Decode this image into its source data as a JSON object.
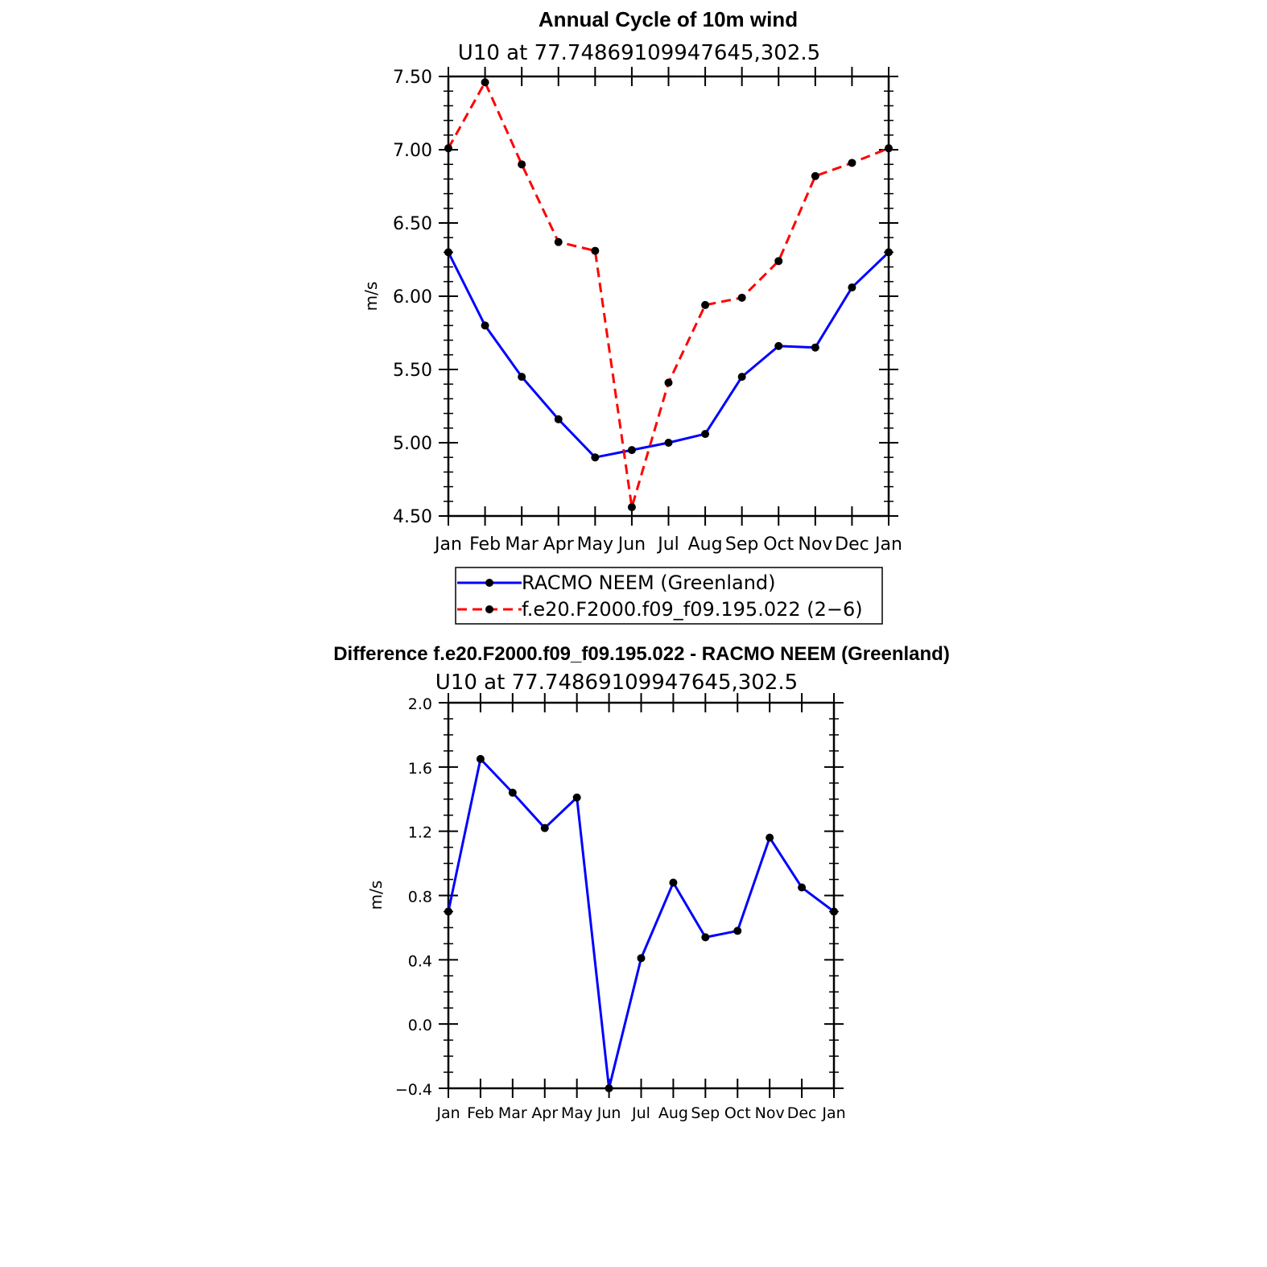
{
  "chart_data": [
    {
      "type": "line",
      "title": "Annual Cycle of 10m wind",
      "subtitle": "U10  at  77.74869109947645,302.5",
      "ylabel": "m/s",
      "xlabel": "",
      "categories": [
        "Jan",
        "Feb",
        "Mar",
        "Apr",
        "May",
        "Jun",
        "Jul",
        "Aug",
        "Sep",
        "Oct",
        "Nov",
        "Dec",
        "Jan"
      ],
      "ylim": [
        4.5,
        7.5
      ],
      "yticks": [
        "4.50",
        "5.00",
        "5.50",
        "6.00",
        "6.50",
        "7.00",
        "7.50"
      ],
      "series": [
        {
          "name": "RACMO NEEM (Greenland)",
          "color": "#0000ff",
          "style": "solid",
          "values": [
            6.3,
            5.8,
            5.45,
            5.16,
            4.9,
            4.95,
            5.0,
            5.06,
            5.45,
            5.66,
            5.65,
            6.06,
            6.3
          ]
        },
        {
          "name": "f.e20.F2000.f09_f09.195.022 (2−6)",
          "color": "#ff0000",
          "style": "dashed",
          "values": [
            7.01,
            7.46,
            6.9,
            6.37,
            6.31,
            4.56,
            5.41,
            5.94,
            5.99,
            6.24,
            6.82,
            6.91,
            7.01
          ]
        }
      ],
      "legend_position": "bottom"
    },
    {
      "type": "line",
      "title": "Difference f.e20.F2000.f09_f09.195.022 - RACMO NEEM (Greenland)",
      "subtitle": "U10  at  77.74869109947645,302.5",
      "ylabel": "m/s",
      "xlabel": "",
      "categories": [
        "Jan",
        "Feb",
        "Mar",
        "Apr",
        "May",
        "Jun",
        "Jul",
        "Aug",
        "Sep",
        "Oct",
        "Nov",
        "Dec",
        "Jan"
      ],
      "ylim": [
        -0.4,
        2.0
      ],
      "yticks": [
        "−0.4",
        "0.0",
        "0.4",
        "0.8",
        "1.2",
        "1.6",
        "2.0"
      ],
      "series": [
        {
          "name": "Difference",
          "color": "#0000ff",
          "style": "solid",
          "values": [
            0.7,
            1.65,
            1.44,
            1.22,
            1.41,
            -0.4,
            0.41,
            0.88,
            0.54,
            0.58,
            1.16,
            0.85,
            0.7
          ]
        }
      ]
    }
  ]
}
